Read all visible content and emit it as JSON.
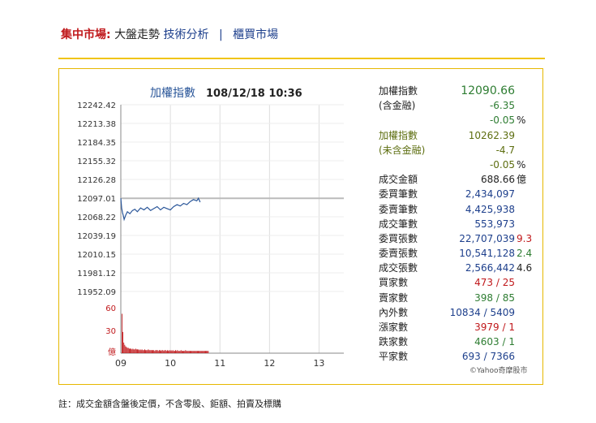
{
  "breadcrumb": {
    "section": "集中市場:",
    "item1": "大盤走勢",
    "item2": "技術分析",
    "separator": "|",
    "item3": "櫃買市場"
  },
  "chart_data": {
    "type": "line",
    "title": "加權指數",
    "timestamp": "108/12/18 10:36",
    "x_ticks": [
      "09",
      "10",
      "11",
      "12",
      "13"
    ],
    "y_ticks": [
      "12242.42",
      "12213.38",
      "12184.35",
      "12155.32",
      "12126.28",
      "12097.01",
      "12068.22",
      "12039.19",
      "12010.15",
      "11981.12",
      "11952.09"
    ],
    "ylim": [
      11952.09,
      12242.42
    ],
    "reference": 12097.01,
    "time_range": [
      "09:00",
      "13:30"
    ],
    "series": [
      {
        "points": [
          [
            "09:00",
            12097.0
          ],
          [
            "09:01",
            12082
          ],
          [
            "09:02",
            12075
          ],
          [
            "09:03",
            12070
          ],
          [
            "09:04",
            12064
          ],
          [
            "09:06",
            12071
          ],
          [
            "09:08",
            12076
          ],
          [
            "09:11",
            12073
          ],
          [
            "09:14",
            12078
          ],
          [
            "09:17",
            12080
          ],
          [
            "09:20",
            12076
          ],
          [
            "09:24",
            12082
          ],
          [
            "09:28",
            12079
          ],
          [
            "09:32",
            12083
          ],
          [
            "09:36",
            12078
          ],
          [
            "09:40",
            12081
          ],
          [
            "09:44",
            12084
          ],
          [
            "09:48",
            12079
          ],
          [
            "09:52",
            12083
          ],
          [
            "09:56",
            12081
          ],
          [
            "10:00",
            12079
          ],
          [
            "10:04",
            12084
          ],
          [
            "10:08",
            12087
          ],
          [
            "10:12",
            12085
          ],
          [
            "10:16",
            12089
          ],
          [
            "10:20",
            12087
          ],
          [
            "10:24",
            12092
          ],
          [
            "10:28",
            12095
          ],
          [
            "10:32",
            12093
          ],
          [
            "10:34",
            12097
          ],
          [
            "10:36",
            12091
          ]
        ]
      }
    ],
    "volume": {
      "axis_labels": [
        "60",
        "30",
        "億"
      ],
      "ylim": [
        0,
        60
      ],
      "values": [
        52,
        28,
        14,
        11,
        9,
        8,
        7,
        7,
        6,
        6,
        6,
        5,
        6,
        5,
        5,
        6,
        5,
        5,
        5,
        4,
        5,
        4,
        5,
        4,
        4,
        5,
        4,
        4,
        4,
        5,
        4,
        4,
        4,
        4,
        4,
        4,
        3,
        4,
        4,
        4,
        3,
        4,
        4,
        3,
        4,
        4,
        3,
        4,
        4,
        3,
        4,
        3,
        4,
        3,
        4,
        3,
        4,
        3,
        3,
        4,
        3,
        4,
        3,
        3,
        3,
        4,
        3,
        3,
        3,
        3,
        4,
        3,
        3,
        3,
        3,
        3,
        3,
        3,
        3,
        3,
        3,
        3,
        3,
        3,
        3,
        3,
        3,
        3,
        3,
        3,
        3,
        3,
        3,
        3,
        3,
        3
      ],
      "color": "#c0181b"
    },
    "line_color": "#2a5699",
    "reference_color": "#bbbbbb"
  },
  "stats": {
    "index_label": "加權指數",
    "index_value": "12090.66",
    "incl_fin_label": "(含金融)",
    "change": "-6.35",
    "change_pct": "-0.05",
    "pct_sign": "%",
    "ex_index_label": "加權指數",
    "ex_index_value": "10262.39",
    "ex_fin_label": "(未含金融)",
    "ex_change": "-4.7",
    "ex_change_pct": "-0.05",
    "ex_pct_sign": "%",
    "turnover_label": "成交金額",
    "turnover_value": "688.66",
    "turnover_unit": "億",
    "bid_orders_label": "委買筆數",
    "bid_orders_value": "2,434,097",
    "ask_orders_label": "委賣筆數",
    "ask_orders_value": "4,425,938",
    "deals_label": "成交筆數",
    "deals_value": "553,973",
    "bid_lots_label": "委買張數",
    "bid_lots_value": "22,707,039",
    "bid_lots_avg": "9.3",
    "ask_lots_label": "委賣張數",
    "ask_lots_value": "10,541,128",
    "ask_lots_avg": "2.4",
    "deal_lots_label": "成交張數",
    "deal_lots_value": "2,566,442",
    "deal_lots_avg": "4.6",
    "buyers_label": "買家數",
    "buyers_value": "473 / 25",
    "sellers_label": "賣家數",
    "sellers_value": "398 / 85",
    "inout_label": "內外數",
    "inout_value": "10834 / 5409",
    "up_label": "漲家數",
    "up_value": "3979 / 1",
    "down_label": "跌家數",
    "down_value": "4603 / 1",
    "flat_label": "平家數",
    "flat_value": "693 / 7366"
  },
  "credit": "©Yahoo奇摩股市",
  "footer": "註：成交金額含盤後定價，不含零股、鉅額、拍賣及標購"
}
